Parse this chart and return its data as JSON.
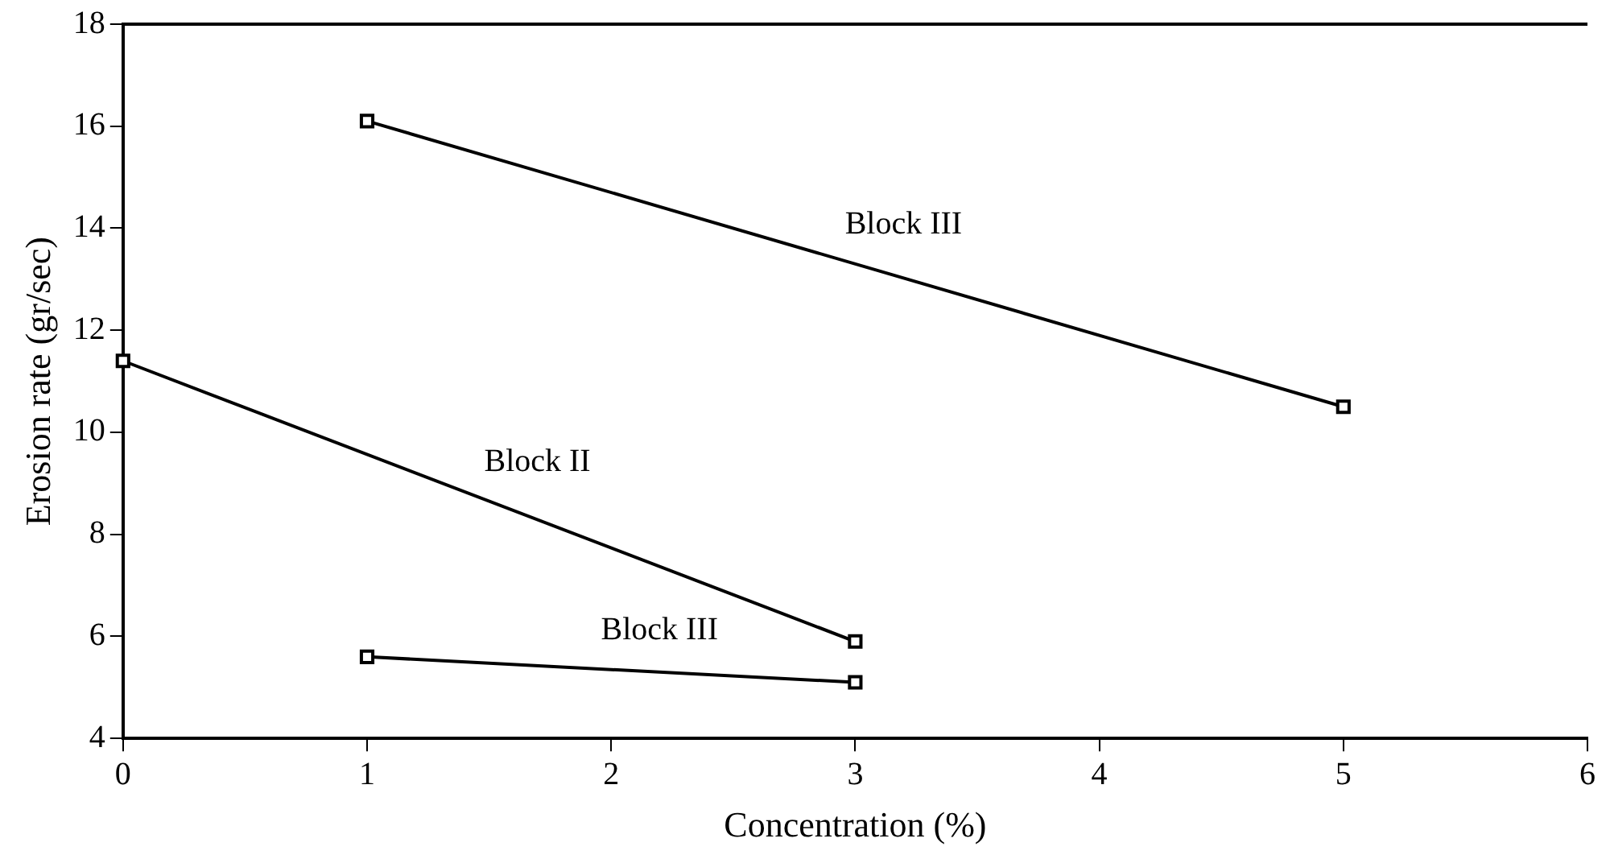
{
  "chart_data": {
    "type": "line",
    "xlabel": "Concentration (%)",
    "ylabel": "Erosion rate (gr/sec)",
    "xlim": [
      0,
      6
    ],
    "xticks": [
      0,
      1,
      2,
      3,
      4,
      5,
      6
    ],
    "ylim": [
      4,
      18
    ],
    "yticks": [
      4,
      6,
      8,
      10,
      12,
      14,
      16,
      18
    ],
    "grid": false,
    "legend": false,
    "marker": "square",
    "line_style": "solid",
    "series": [
      {
        "name": "Block III",
        "color": "#000000",
        "x": [
          1,
          5
        ],
        "values": [
          16.1,
          10.5
        ]
      },
      {
        "name": "Block II",
        "color": "#000000",
        "x": [
          0,
          3
        ],
        "values": [
          11.4,
          5.9
        ]
      },
      {
        "name": "Block III",
        "color": "#000000",
        "x": [
          1,
          3
        ],
        "values": [
          5.6,
          5.1
        ]
      }
    ]
  }
}
